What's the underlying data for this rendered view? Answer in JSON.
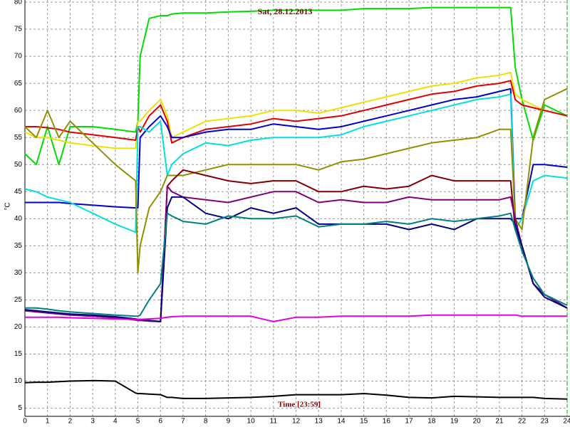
{
  "chart_data": {
    "type": "line",
    "title": "Sat, 28.12.2013",
    "x_label": "Time [23:59]",
    "y_label": "°C",
    "x": [
      0,
      0.5,
      1,
      1.5,
      2,
      3,
      4,
      4.9,
      5,
      5.1,
      5.5,
      6,
      6.3,
      6.5,
      7,
      8,
      9,
      10,
      11,
      12,
      13,
      14,
      15,
      16,
      17,
      18,
      19,
      20,
      21,
      21.5,
      21.7,
      22,
      22.5,
      23,
      24
    ],
    "xlim": [
      0,
      24
    ],
    "xticks": [
      0,
      1,
      2,
      3,
      4,
      5,
      6,
      7,
      8,
      9,
      10,
      11,
      12,
      13,
      14,
      15,
      16,
      17,
      18,
      19,
      20,
      21,
      22,
      23,
      24
    ],
    "ylim": [
      3.5,
      80
    ],
    "yticks": [
      5,
      10,
      15,
      20,
      25,
      30,
      35,
      40,
      45,
      50,
      55,
      60,
      65,
      70,
      75,
      80
    ],
    "grid": true,
    "series": [
      {
        "color": "#00dd00",
        "values": [
          52,
          50,
          57,
          50,
          57,
          57,
          56.5,
          56,
          58,
          70,
          77,
          77.5,
          77.5,
          77.8,
          78,
          78,
          78.2,
          78.3,
          78.5,
          78.5,
          78.5,
          78.5,
          78.8,
          78.8,
          78.8,
          79,
          79,
          79,
          79,
          79,
          68,
          62,
          54.5,
          61,
          59
        ]
      },
      {
        "color": "#f0e000",
        "values": [
          56,
          55,
          55,
          54.5,
          54,
          53.5,
          53,
          53,
          58,
          58,
          60,
          62,
          59,
          55,
          56,
          58,
          58.5,
          59,
          60,
          60,
          59.5,
          60.5,
          61.5,
          62.5,
          63.5,
          64.5,
          65,
          66,
          66.5,
          67,
          63,
          62,
          61,
          60,
          59
        ]
      },
      {
        "color": "#e00000",
        "values": [
          57,
          57,
          56.8,
          56.5,
          56,
          55.5,
          55,
          54.5,
          57,
          56,
          59,
          61,
          58,
          54,
          55,
          56.5,
          57,
          57.5,
          58.5,
          58,
          58.5,
          59,
          60,
          61,
          62,
          63,
          63.5,
          64.5,
          65,
          65.5,
          62,
          61,
          60.5,
          60,
          59
        ]
      },
      {
        "color": "#0000d0",
        "values": [
          43,
          43,
          43,
          43,
          42.8,
          42.5,
          42.2,
          42,
          42,
          55,
          57,
          59,
          57,
          55,
          55,
          56,
          56.5,
          56.5,
          57.5,
          57,
          56.5,
          57,
          58,
          59,
          60,
          61,
          62,
          62.5,
          63.5,
          64,
          40,
          40,
          50,
          50,
          49.5
        ]
      },
      {
        "color": "#00e0e0",
        "values": [
          45.5,
          45,
          44,
          43.5,
          43,
          41,
          39,
          37.5,
          57,
          57,
          56,
          58,
          48,
          50,
          52,
          54,
          53.5,
          54.5,
          55,
          55,
          55,
          55.5,
          57,
          58,
          59,
          60,
          61,
          62,
          62.5,
          63,
          38,
          40,
          47,
          48,
          47.5
        ]
      },
      {
        "color": "#909000",
        "values": [
          57,
          55,
          60,
          55,
          58,
          54,
          50,
          47,
          30,
          35,
          42,
          45,
          48,
          48,
          48,
          49,
          50,
          50,
          50,
          50,
          49,
          50.5,
          51,
          52,
          53,
          54,
          54.5,
          55,
          56.5,
          56.5,
          40,
          38,
          55,
          62,
          64
        ]
      },
      {
        "color": "#800000",
        "values": [
          23,
          23,
          22.7,
          22.5,
          22.3,
          22,
          21.7,
          21.3,
          21.2,
          21.2,
          21.1,
          21,
          46,
          47,
          49,
          48,
          47,
          46.5,
          47,
          47,
          45,
          45,
          46,
          45.5,
          46,
          48,
          47,
          47,
          47,
          47,
          38,
          35,
          28,
          26,
          23.5
        ]
      },
      {
        "color": "#800080",
        "values": [
          23,
          22.8,
          22.6,
          22.4,
          22.2,
          22,
          21.7,
          21.3,
          21.2,
          21.2,
          21.1,
          21,
          46,
          45,
          44,
          43.5,
          43,
          44,
          45,
          45,
          43,
          43.5,
          43,
          43,
          44,
          43.5,
          43.5,
          43.5,
          43.5,
          44,
          40,
          35,
          28,
          26,
          23.5
        ]
      },
      {
        "color": "#000080",
        "values": [
          23.2,
          23,
          22.8,
          22.6,
          22.4,
          22.2,
          21.9,
          21.5,
          21.4,
          21.4,
          21.2,
          21,
          42,
          44,
          44,
          41,
          40,
          42,
          41,
          42,
          39,
          39,
          39,
          39,
          38,
          39,
          38,
          40,
          40,
          40,
          39,
          35,
          28,
          25.5,
          23.5
        ]
      },
      {
        "color": "#008080",
        "values": [
          23.5,
          23.5,
          23.3,
          23,
          22.8,
          22.5,
          22.2,
          22,
          22,
          22.2,
          25,
          28,
          41,
          40.5,
          39.5,
          39,
          40.5,
          40,
          40,
          40.5,
          38.5,
          39,
          39,
          39.5,
          39,
          40,
          39.5,
          40,
          40.5,
          41,
          38,
          34,
          29,
          26,
          24
        ]
      },
      {
        "color": "#e000e0",
        "values": [
          21.8,
          21.8,
          21.8,
          21.8,
          21.7,
          21.6,
          21.5,
          21.4,
          21.4,
          21.4,
          21.5,
          21.6,
          21.8,
          21.9,
          22,
          22,
          22,
          22,
          21,
          21.8,
          21.8,
          22,
          22,
          22,
          22,
          22.2,
          22.2,
          22.2,
          22.2,
          22.2,
          22.2,
          22,
          22,
          22,
          22
        ]
      },
      {
        "color": "#000000",
        "values": [
          9.7,
          9.8,
          9.8,
          9.9,
          10,
          10.1,
          10,
          7.8,
          7.7,
          7.7,
          7.6,
          7.5,
          7,
          7,
          6.8,
          6.8,
          6.9,
          7,
          7.2,
          7.5,
          7.5,
          7.5,
          7.7,
          7.4,
          7,
          6.9,
          7.2,
          7.1,
          7,
          7,
          7,
          7,
          7,
          6.8,
          6.7
        ]
      }
    ]
  }
}
